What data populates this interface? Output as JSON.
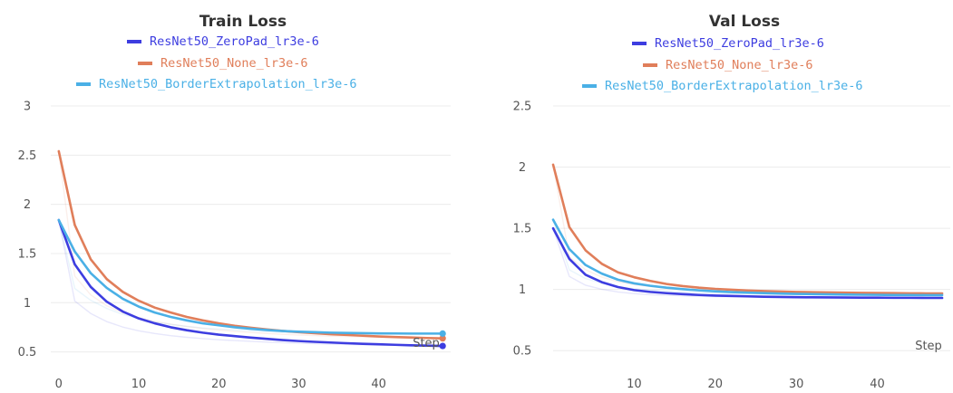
{
  "chart_data": [
    {
      "type": "line",
      "title": "Train Loss",
      "xlabel": "Step",
      "ylabel": "",
      "xlim": [
        -1,
        49
      ],
      "ylim": [
        0.45,
        3
      ],
      "xticks": [
        0,
        10,
        20,
        30,
        40
      ],
      "yticks": [
        0.5,
        1,
        1.5,
        2,
        2.5,
        3
      ],
      "ytick_labels": [
        "0.5",
        "1",
        "1.5",
        "2",
        "2.5",
        "3"
      ],
      "grid": true,
      "legend_position": "top-center",
      "series": [
        {
          "name": "ResNet50_ZeroPad_lr3e-6",
          "color": "#3d3de0",
          "x": [
            0,
            2,
            4,
            6,
            8,
            10,
            12,
            14,
            16,
            18,
            20,
            22,
            24,
            26,
            28,
            30,
            32,
            34,
            36,
            38,
            40,
            42,
            44,
            46,
            48
          ],
          "y": [
            1.84,
            1.39,
            1.16,
            1.01,
            0.91,
            0.84,
            0.79,
            0.75,
            0.72,
            0.695,
            0.675,
            0.66,
            0.645,
            0.632,
            0.62,
            0.61,
            0.602,
            0.595,
            0.588,
            0.582,
            0.577,
            0.572,
            0.567,
            0.563,
            0.56
          ]
        },
        {
          "name": "ResNet50_None_lr3e-6",
          "color": "#e07e5a",
          "x": [
            0,
            2,
            4,
            6,
            8,
            10,
            12,
            14,
            16,
            18,
            20,
            22,
            24,
            26,
            28,
            30,
            32,
            34,
            36,
            38,
            40,
            42,
            44,
            46,
            48
          ],
          "y": [
            2.54,
            1.79,
            1.44,
            1.24,
            1.11,
            1.02,
            0.95,
            0.9,
            0.855,
            0.82,
            0.79,
            0.765,
            0.745,
            0.728,
            0.713,
            0.7,
            0.69,
            0.68,
            0.672,
            0.664,
            0.657,
            0.651,
            0.646,
            0.641,
            0.637
          ]
        },
        {
          "name": "ResNet50_BorderExtrapolation_lr3e-6",
          "color": "#4ab0e6",
          "x": [
            0,
            2,
            4,
            6,
            8,
            10,
            12,
            14,
            16,
            18,
            20,
            22,
            24,
            26,
            28,
            30,
            32,
            34,
            36,
            38,
            40,
            42,
            44,
            46,
            48
          ],
          "y": [
            1.84,
            1.52,
            1.3,
            1.15,
            1.04,
            0.96,
            0.9,
            0.855,
            0.82,
            0.79,
            0.77,
            0.75,
            0.735,
            0.722,
            0.712,
            0.705,
            0.7,
            0.695,
            0.692,
            0.69,
            0.688,
            0.687,
            0.686,
            0.686,
            0.686
          ]
        }
      ]
    },
    {
      "type": "line",
      "title": "Val Loss",
      "xlabel": "Step",
      "ylabel": "",
      "xlim": [
        0,
        49
      ],
      "ylim": [
        0.45,
        2.5
      ],
      "xticks": [
        10,
        20,
        30,
        40
      ],
      "yticks": [
        0.5,
        1,
        1.5,
        2,
        2.5
      ],
      "ytick_labels": [
        "0.5",
        "1",
        "1.5",
        "2",
        "2.5"
      ],
      "grid": true,
      "legend_position": "top-center",
      "series": [
        {
          "name": "ResNet50_ZeroPad_lr3e-6",
          "color": "#3d3de0",
          "x": [
            0,
            2,
            4,
            6,
            8,
            10,
            12,
            14,
            16,
            18,
            20,
            22,
            24,
            26,
            28,
            30,
            32,
            34,
            36,
            38,
            40,
            42,
            44,
            46,
            48
          ],
          "y": [
            1.5,
            1.25,
            1.12,
            1.06,
            1.02,
            0.995,
            0.98,
            0.97,
            0.962,
            0.955,
            0.95,
            0.947,
            0.944,
            0.941,
            0.939,
            0.937,
            0.936,
            0.935,
            0.934,
            0.933,
            0.933,
            0.932,
            0.932,
            0.931,
            0.931
          ]
        },
        {
          "name": "ResNet50_None_lr3e-6",
          "color": "#e07e5a",
          "x": [
            0,
            2,
            4,
            6,
            8,
            10,
            12,
            14,
            16,
            18,
            20,
            22,
            24,
            26,
            28,
            30,
            32,
            34,
            36,
            38,
            40,
            42,
            44,
            46,
            48
          ],
          "y": [
            2.02,
            1.51,
            1.32,
            1.21,
            1.14,
            1.1,
            1.07,
            1.045,
            1.028,
            1.015,
            1.005,
            0.998,
            0.992,
            0.987,
            0.983,
            0.98,
            0.978,
            0.976,
            0.974,
            0.972,
            0.971,
            0.97,
            0.969,
            0.968,
            0.968
          ]
        },
        {
          "name": "ResNet50_BorderExtrapolation_lr3e-6",
          "color": "#4ab0e6",
          "x": [
            0,
            2,
            4,
            6,
            8,
            10,
            12,
            14,
            16,
            18,
            20,
            22,
            24,
            26,
            28,
            30,
            32,
            34,
            36,
            38,
            40,
            42,
            44,
            46,
            48
          ],
          "y": [
            1.57,
            1.33,
            1.2,
            1.13,
            1.08,
            1.05,
            1.03,
            1.015,
            1.003,
            0.993,
            0.985,
            0.979,
            0.974,
            0.97,
            0.967,
            0.964,
            0.962,
            0.96,
            0.958,
            0.957,
            0.956,
            0.955,
            0.955,
            0.954,
            0.954
          ]
        }
      ]
    }
  ]
}
